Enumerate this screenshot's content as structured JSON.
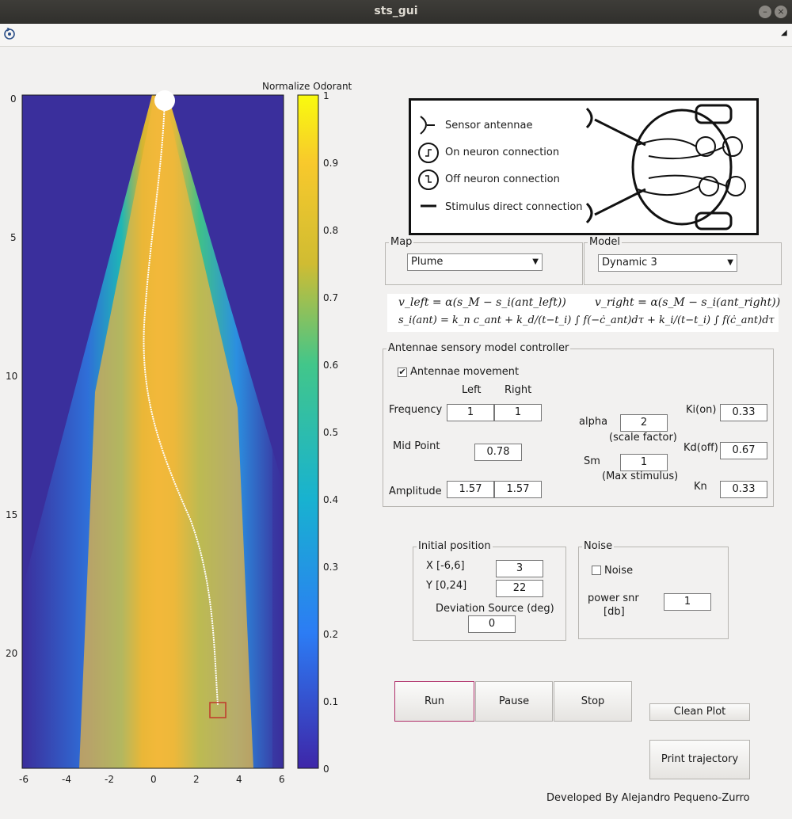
{
  "window": {
    "title": "sts_gui"
  },
  "toolbar": {
    "left_icon": "rotate-icon",
    "right_icon": "dock-arrow-icon"
  },
  "plot": {
    "colorbar_title": "Normalize Odorant",
    "y_ticks": [
      "0",
      "5",
      "10",
      "15",
      "20"
    ],
    "x_ticks": [
      "-6",
      "-4",
      "-2",
      "0",
      "2",
      "4",
      "6"
    ],
    "colorbar_ticks": [
      "1",
      "0.9",
      "0.8",
      "0.7",
      "0.6",
      "0.5",
      "0.4",
      "0.3",
      "0.2",
      "0.1",
      "0"
    ],
    "source_marker_color": "#ffffff",
    "start_marker_color": "#c0392b",
    "trajectory_color": "#ffffff"
  },
  "legend": {
    "sensor": "Sensor antennae",
    "on": "On neuron connection",
    "off": "Off neuron connection",
    "direct": "Stimulus direct connection"
  },
  "map": {
    "title": "Map",
    "value": "Plume"
  },
  "model": {
    "title": "Model",
    "value": "Dynamic 3"
  },
  "equations": {
    "v_left": "v_left = α(s_M − s_i(ant_left))",
    "v_right": "v_right = α(s_M − s_i(ant_right))",
    "s_i": "s_i(ant) = k_n c_ant + k_d/(t−t_i) ∫ f(−ċ_ant)dτ + k_i/(t−t_i) ∫ f(ċ_ant)dτ"
  },
  "antennae": {
    "title": "Antennae sensory model controller",
    "movement_label": "Antennae movement",
    "movement_checked": true,
    "left_header": "Left",
    "right_header": "Right",
    "frequency_label": "Frequency",
    "frequency_left": "1",
    "frequency_right": "1",
    "midpoint_label": "Mid Point",
    "midpoint": "0.78",
    "amplitude_label": "Amplitude",
    "amplitude_left": "1.57",
    "amplitude_right": "1.57",
    "alpha_label": "alpha",
    "alpha": "2",
    "alpha_note": "(scale factor)",
    "sm_label": "Sm",
    "sm": "1",
    "sm_note": "(Max stimulus)",
    "ki_label": "Ki(on)",
    "ki": "0.33",
    "kd_label": "Kd(off)",
    "kd": "0.67",
    "kn_label": "Kn",
    "kn": "0.33"
  },
  "initial": {
    "title": "Initial position",
    "x_label": "X [-6,6]",
    "x": "3",
    "y_label": "Y [0,24]",
    "y": "22",
    "dev_label": "Deviation Source (deg)",
    "dev": "0"
  },
  "noise": {
    "title": "Noise",
    "checkbox_label": "Noise",
    "checked": false,
    "snr_label_1": "power snr",
    "snr_label_2": "[db]",
    "snr": "1"
  },
  "buttons": {
    "run": "Run",
    "pause": "Pause",
    "stop": "Stop",
    "clean": "Clean Plot",
    "print": "Print trajectory"
  },
  "credit": "Developed By Alejandro Pequeno-Zurro"
}
